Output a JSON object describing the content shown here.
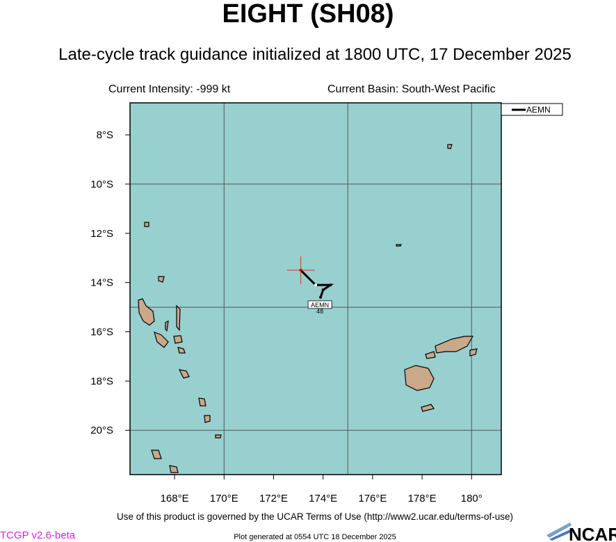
{
  "header": {
    "title": "EIGHT (SH08)",
    "subtitle": "Late-cycle track guidance initialized at 1800 UTC, 17 December 2025"
  },
  "info": {
    "intensity": "Current Intensity: -999 kt",
    "basin": "Current Basin: South-West Pacific"
  },
  "map": {
    "lonlim": [
      166.2,
      181.2
    ],
    "latlim": [
      -21.8,
      -6.7
    ],
    "lonticks": [
      {
        "value": 168,
        "label": "168°E"
      },
      {
        "value": 170,
        "label": "170°E"
      },
      {
        "value": 172,
        "label": "172°E"
      },
      {
        "value": 174,
        "label": "174°E"
      },
      {
        "value": 176,
        "label": "176°E"
      },
      {
        "value": 178,
        "label": "178°E"
      },
      {
        "value": 180,
        "label": "180°"
      }
    ],
    "latticks": [
      {
        "value": -8,
        "label": "8°S"
      },
      {
        "value": -10,
        "label": "10°S"
      },
      {
        "value": -12,
        "label": "12°S"
      },
      {
        "value": -14,
        "label": "14°S"
      },
      {
        "value": -16,
        "label": "16°S"
      },
      {
        "value": -18,
        "label": "18°S"
      },
      {
        "value": -20,
        "label": "20°S"
      }
    ],
    "lon_grid": [
      170,
      175,
      180
    ],
    "lat_grid": [
      -10,
      -15,
      -20
    ]
  },
  "track": {
    "name": "AEMN",
    "lon": [
      173.1,
      173.7,
      174.3,
      174.0,
      173.9
    ],
    "lat": [
      -13.5,
      -14.1,
      -14.1,
      -14.3,
      -14.6
    ],
    "end_label": "48"
  },
  "footer": {
    "terms": "Use of this product is governed by the UCAR Terms of Use (http://www2.ucar.edu/terms-of-use)",
    "version": "TCGP v2.6-beta",
    "generated": "Plot generated at 0554 UTC   18 December 2025",
    "logo": "NCAR"
  }
}
